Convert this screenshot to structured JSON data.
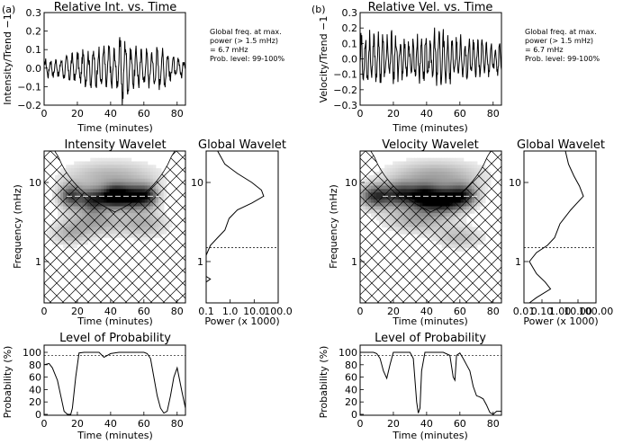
{
  "left": {
    "panel_label": "(a)",
    "ts_title": "Relative Int. vs. Time",
    "ts_ylabel": "Intensity/Trend −1",
    "ts_xlabel": "Time (minutes)",
    "note_lines": [
      "Global freq. at max.",
      "power (> 1.5 mHz)",
      "= 6.7 mHz",
      "Prob. level: 99-100%"
    ],
    "wavelet_title": "Intensity Wavelet",
    "wavelet_ylabel": "Frequency (mHz)",
    "wavelet_xlabel": "Time (minutes)",
    "global_title": "Global Wavelet",
    "global_xlabel": "Power (x 1000)",
    "prob_title": "Level of Probability",
    "prob_ylabel": "Probability (%)",
    "prob_xlabel": "Time (minutes)"
  },
  "right": {
    "panel_label": "(b)",
    "ts_title": "Relative Vel. vs. Time",
    "ts_ylabel": "Velocity/Trend −1",
    "ts_xlabel": "Time (minutes)",
    "note_lines": [
      "Global freq. at max.",
      "power (> 1.5 mHz)",
      "= 6.7 mHz",
      "Prob. level: 99-100%"
    ],
    "wavelet_title": "Velocity Wavelet",
    "wavelet_ylabel": "Frequency (mHz)",
    "wavelet_xlabel": "Time (minutes)",
    "global_title": "Global Wavelet",
    "global_xlabel": "Power (x 1000)",
    "prob_title": "Level of Probability",
    "prob_ylabel": "Probability (%)",
    "prob_xlabel": "Time (minutes)"
  },
  "chart_data": [
    {
      "id": "intensity_ts",
      "type": "line",
      "title": "Relative Int. vs. Time",
      "xlabel": "Time (minutes)",
      "ylabel": "Intensity/Trend −1",
      "xlim": [
        0,
        85
      ],
      "ylim": [
        -0.2,
        0.3
      ],
      "xticks": [
        0,
        20,
        40,
        60,
        80
      ],
      "yticks": [
        -0.2,
        -0.1,
        0.0,
        0.1,
        0.2,
        0.3
      ],
      "ytick_labels": [
        "−0.2",
        "−0.1",
        "0.0",
        "0.1",
        "0.2",
        "0.3"
      ],
      "envelope": [
        [
          0,
          0.06
        ],
        [
          10,
          0.06
        ],
        [
          20,
          0.1
        ],
        [
          30,
          0.12
        ],
        [
          40,
          0.15
        ],
        [
          44,
          0.12
        ],
        [
          47,
          0.24
        ],
        [
          52,
          0.13
        ],
        [
          60,
          0.12
        ],
        [
          70,
          0.13
        ],
        [
          80,
          0.07
        ],
        [
          85,
          0.06
        ]
      ],
      "period_min": 3.2
    },
    {
      "id": "velocity_ts",
      "type": "line",
      "title": "Relative Vel. vs. Time",
      "xlabel": "Time (minutes)",
      "ylabel": "Velocity/Trend −1",
      "xlim": [
        0,
        85
      ],
      "ylim": [
        -0.3,
        0.3
      ],
      "xticks": [
        0,
        20,
        40,
        60,
        80
      ],
      "yticks": [
        -0.3,
        -0.2,
        -0.1,
        0.0,
        0.1,
        0.2,
        0.3
      ],
      "ytick_labels": [
        "−0.3",
        "−0.2",
        "−0.1",
        "0.0",
        "0.1",
        "0.2",
        "0.3"
      ],
      "envelope": [
        [
          0,
          0.22
        ],
        [
          10,
          0.18
        ],
        [
          20,
          0.2
        ],
        [
          30,
          0.15
        ],
        [
          40,
          0.2
        ],
        [
          47,
          0.25
        ],
        [
          55,
          0.18
        ],
        [
          65,
          0.15
        ],
        [
          75,
          0.14
        ],
        [
          85,
          0.12
        ]
      ],
      "period_min": 2.6
    },
    {
      "id": "intensity_wavelet",
      "type": "heatmap",
      "title": "Intensity Wavelet",
      "xlabel": "Time (minutes)",
      "ylabel": "Frequency (mHz)",
      "xlim": [
        0,
        85
      ],
      "ylim_mhz": [
        0.3,
        25
      ],
      "yscale": "log",
      "xticks": [
        0,
        20,
        40,
        60,
        80
      ],
      "yticks": [
        1,
        10
      ],
      "blobs": [
        {
          "t": 16,
          "f": 6.7,
          "amp": 0.7,
          "st": 5,
          "sf": 0.1
        },
        {
          "t": 30,
          "f": 6.0,
          "amp": 0.8,
          "st": 6,
          "sf": 0.1
        },
        {
          "t": 42,
          "f": 6.7,
          "amp": 1.0,
          "st": 5,
          "sf": 0.09
        },
        {
          "t": 52,
          "f": 6.5,
          "amp": 0.9,
          "st": 6,
          "sf": 0.1
        },
        {
          "t": 62,
          "f": 6.7,
          "amp": 0.7,
          "st": 5,
          "sf": 0.1
        },
        {
          "t": 30,
          "f": 3.2,
          "amp": 0.35,
          "st": 12,
          "sf": 0.12
        },
        {
          "t": 60,
          "f": 3.0,
          "amp": 0.3,
          "st": 10,
          "sf": 0.12
        },
        {
          "t": 40,
          "f": 12,
          "amp": 0.3,
          "st": 20,
          "sf": 0.14
        },
        {
          "t": 15,
          "f": 2.2,
          "amp": 0.25,
          "st": 8,
          "sf": 0.1
        }
      ]
    },
    {
      "id": "velocity_wavelet",
      "type": "heatmap",
      "title": "Velocity Wavelet",
      "xlabel": "Time (minutes)",
      "ylabel": "Frequency (mHz)",
      "xlim": [
        0,
        85
      ],
      "ylim_mhz": [
        0.3,
        25
      ],
      "yscale": "log",
      "xticks": [
        0,
        20,
        40,
        60,
        80
      ],
      "yticks": [
        1,
        10
      ],
      "blobs": [
        {
          "t": 10,
          "f": 6.7,
          "amp": 0.8,
          "st": 7,
          "sf": 0.1
        },
        {
          "t": 25,
          "f": 7.0,
          "amp": 0.7,
          "st": 6,
          "sf": 0.1
        },
        {
          "t": 38,
          "f": 6.5,
          "amp": 0.95,
          "st": 6,
          "sf": 0.1
        },
        {
          "t": 50,
          "f": 6.0,
          "amp": 1.0,
          "st": 7,
          "sf": 0.1
        },
        {
          "t": 62,
          "f": 6.7,
          "amp": 0.75,
          "st": 6,
          "sf": 0.1
        },
        {
          "t": 35,
          "f": 3.5,
          "amp": 0.35,
          "st": 14,
          "sf": 0.12
        },
        {
          "t": 45,
          "f": 12,
          "amp": 0.35,
          "st": 20,
          "sf": 0.14
        },
        {
          "t": 60,
          "f": 2.0,
          "amp": 0.25,
          "st": 10,
          "sf": 0.1
        }
      ]
    },
    {
      "id": "intensity_global",
      "type": "line",
      "title": "Global Wavelet",
      "xlabel": "Power (x 1000)",
      "xscale": "log",
      "xlim": [
        0.1,
        100
      ],
      "xticks": [
        0.1,
        1.0,
        10.0,
        100.0
      ],
      "xtick_labels": [
        "0.1",
        "1.0",
        "10.0",
        "100.0"
      ],
      "ylim_mhz": [
        0.3,
        25
      ],
      "yticks": [
        1,
        10
      ],
      "threshold_mhz": 1.5,
      "points": [
        [
          0.1,
          0.3
        ],
        [
          0.1,
          0.55
        ],
        [
          0.15,
          0.6
        ],
        [
          0.1,
          0.65
        ],
        [
          0.1,
          1.2
        ],
        [
          0.15,
          1.6
        ],
        [
          0.3,
          2.0
        ],
        [
          0.6,
          2.5
        ],
        [
          0.9,
          3.5
        ],
        [
          2,
          4.5
        ],
        [
          8,
          5.5
        ],
        [
          25,
          6.7
        ],
        [
          20,
          8
        ],
        [
          8,
          10
        ],
        [
          2,
          13
        ],
        [
          0.6,
          17
        ],
        [
          0.3,
          25
        ]
      ]
    },
    {
      "id": "velocity_global",
      "type": "line",
      "title": "Global Wavelet",
      "xlabel": "Power (x 1000)",
      "xscale": "log",
      "xlim": [
        0.01,
        100
      ],
      "xticks": [
        0.01,
        0.1,
        1.0,
        10.0,
        100.0
      ],
      "xtick_labels": [
        "0.01",
        "0.10",
        "1.00",
        "10.00",
        "100.00"
      ],
      "ylim_mhz": [
        0.3,
        25
      ],
      "yticks": [
        1,
        10
      ],
      "threshold_mhz": 1.5,
      "points": [
        [
          0.02,
          0.3
        ],
        [
          0.05,
          0.35
        ],
        [
          0.3,
          0.45
        ],
        [
          0.15,
          0.55
        ],
        [
          0.05,
          0.7
        ],
        [
          0.02,
          1.0
        ],
        [
          0.05,
          1.3
        ],
        [
          0.2,
          1.6
        ],
        [
          0.5,
          2.0
        ],
        [
          1,
          3
        ],
        [
          4,
          4.5
        ],
        [
          20,
          6.7
        ],
        [
          12,
          9
        ],
        [
          6,
          12
        ],
        [
          3,
          17
        ],
        [
          2,
          25
        ]
      ]
    },
    {
      "id": "intensity_probability",
      "type": "line",
      "title": "Level of Probability",
      "xlabel": "Time (minutes)",
      "ylabel": "Probability (%)",
      "xlim": [
        0,
        85
      ],
      "ylim": [
        0,
        100
      ],
      "xticks": [
        0,
        20,
        40,
        60,
        80
      ],
      "yticks": [
        0,
        20,
        40,
        60,
        80,
        100
      ],
      "threshold": 95,
      "points": [
        [
          0,
          80
        ],
        [
          3,
          82
        ],
        [
          5,
          75
        ],
        [
          8,
          55
        ],
        [
          10,
          30
        ],
        [
          12,
          5
        ],
        [
          14,
          0
        ],
        [
          16,
          0
        ],
        [
          17,
          10
        ],
        [
          19,
          60
        ],
        [
          21,
          99
        ],
        [
          24,
          100
        ],
        [
          30,
          100
        ],
        [
          33,
          100
        ],
        [
          36,
          92
        ],
        [
          40,
          98
        ],
        [
          45,
          100
        ],
        [
          60,
          100
        ],
        [
          62,
          98
        ],
        [
          64,
          90
        ],
        [
          66,
          60
        ],
        [
          68,
          30
        ],
        [
          70,
          10
        ],
        [
          72,
          2
        ],
        [
          74,
          5
        ],
        [
          76,
          30
        ],
        [
          78,
          60
        ],
        [
          80,
          75
        ],
        [
          83,
          35
        ],
        [
          85,
          10
        ]
      ]
    },
    {
      "id": "velocity_probability",
      "type": "line",
      "title": "Level of Probability",
      "xlabel": "Time (minutes)",
      "ylabel": "Probability (%)",
      "xlim": [
        0,
        85
      ],
      "ylim": [
        0,
        100
      ],
      "xticks": [
        0,
        20,
        40,
        60,
        80
      ],
      "yticks": [
        0,
        20,
        40,
        60,
        80,
        100
      ],
      "threshold": 95,
      "points": [
        [
          0,
          100
        ],
        [
          8,
          100
        ],
        [
          10,
          98
        ],
        [
          12,
          90
        ],
        [
          14,
          70
        ],
        [
          16,
          58
        ],
        [
          18,
          80
        ],
        [
          20,
          100
        ],
        [
          30,
          100
        ],
        [
          32,
          90
        ],
        [
          34,
          20
        ],
        [
          35,
          2
        ],
        [
          36,
          10
        ],
        [
          37,
          70
        ],
        [
          39,
          100
        ],
        [
          50,
          100
        ],
        [
          54,
          95
        ],
        [
          56,
          60
        ],
        [
          57,
          55
        ],
        [
          58,
          95
        ],
        [
          60,
          99
        ],
        [
          62,
          90
        ],
        [
          64,
          80
        ],
        [
          66,
          70
        ],
        [
          68,
          45
        ],
        [
          70,
          30
        ],
        [
          72,
          28
        ],
        [
          74,
          25
        ],
        [
          76,
          15
        ],
        [
          78,
          3
        ],
        [
          80,
          0
        ],
        [
          82,
          5
        ],
        [
          85,
          5
        ]
      ]
    }
  ]
}
